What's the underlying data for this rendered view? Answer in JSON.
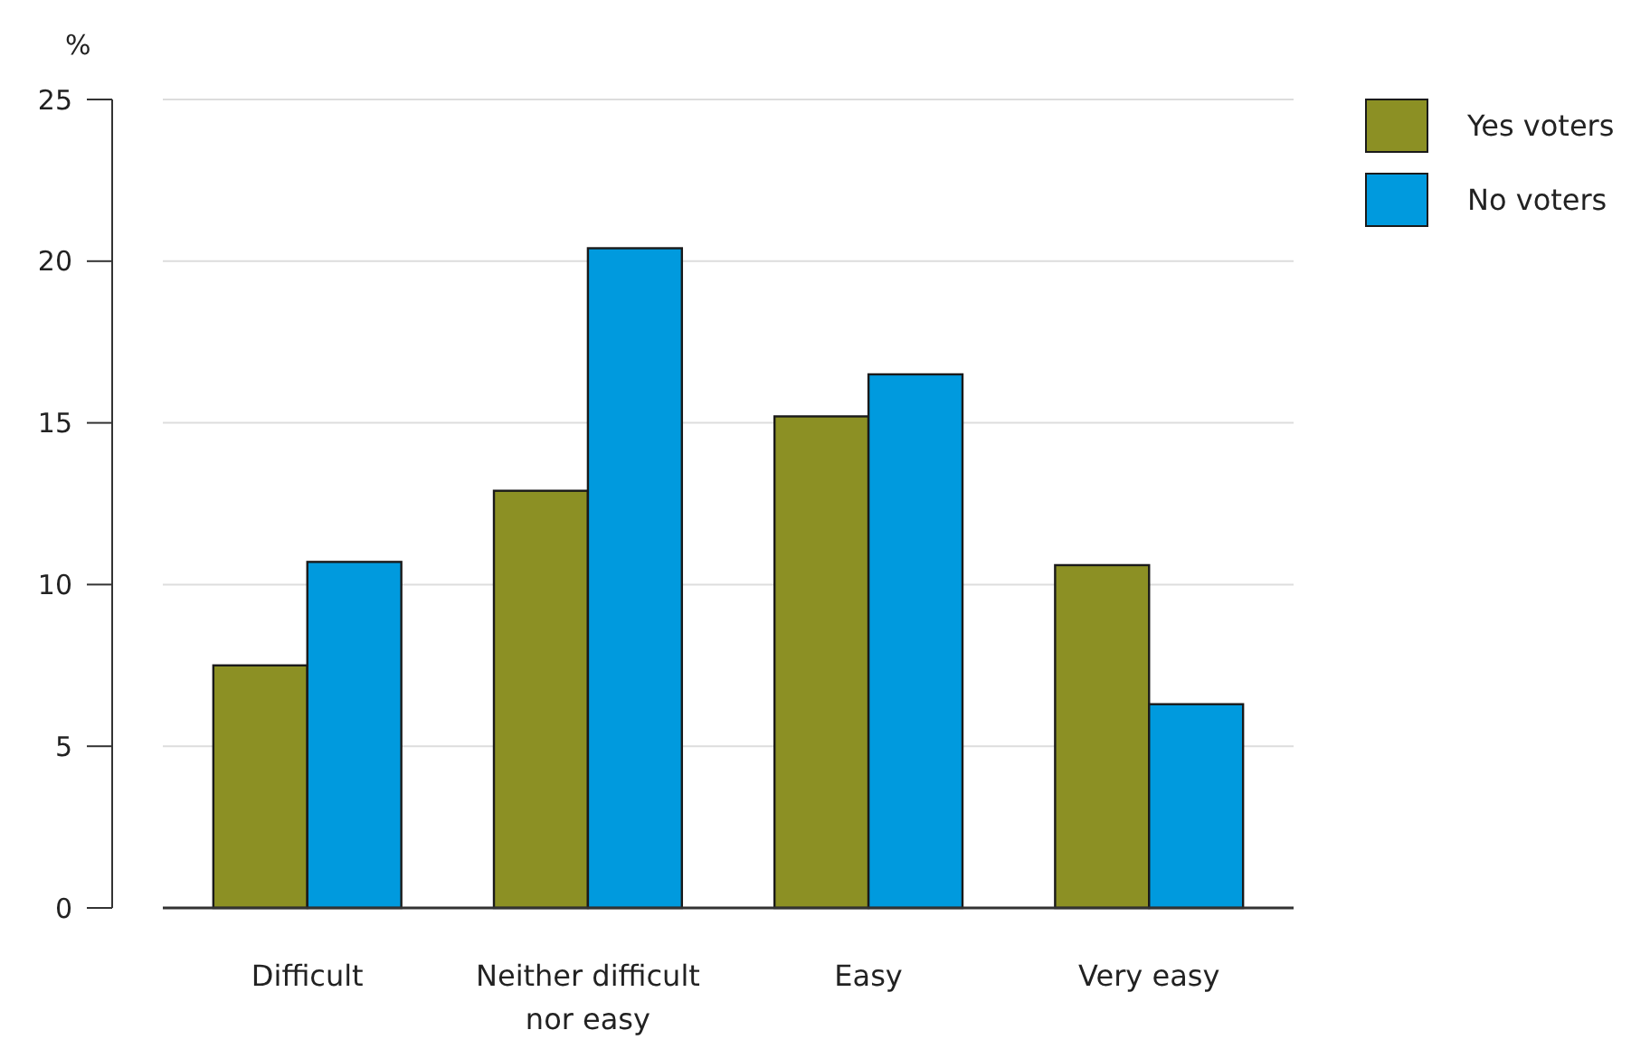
{
  "chart_data": {
    "type": "bar",
    "ylabel": "%",
    "categories": [
      "Difficult",
      "Neither difficult nor easy",
      "Easy",
      "Very easy"
    ],
    "series": [
      {
        "name": "Yes voters",
        "color": "#8c9024",
        "values": [
          7.5,
          12.9,
          15.2,
          10.6
        ]
      },
      {
        "name": "No voters",
        "color": "#009ade",
        "values": [
          10.7,
          20.4,
          16.5,
          6.3
        ]
      }
    ],
    "ylim": [
      0,
      25
    ],
    "yticks": [
      0,
      5,
      10,
      15,
      20,
      25
    ],
    "grid": "y",
    "legend": "top right"
  }
}
